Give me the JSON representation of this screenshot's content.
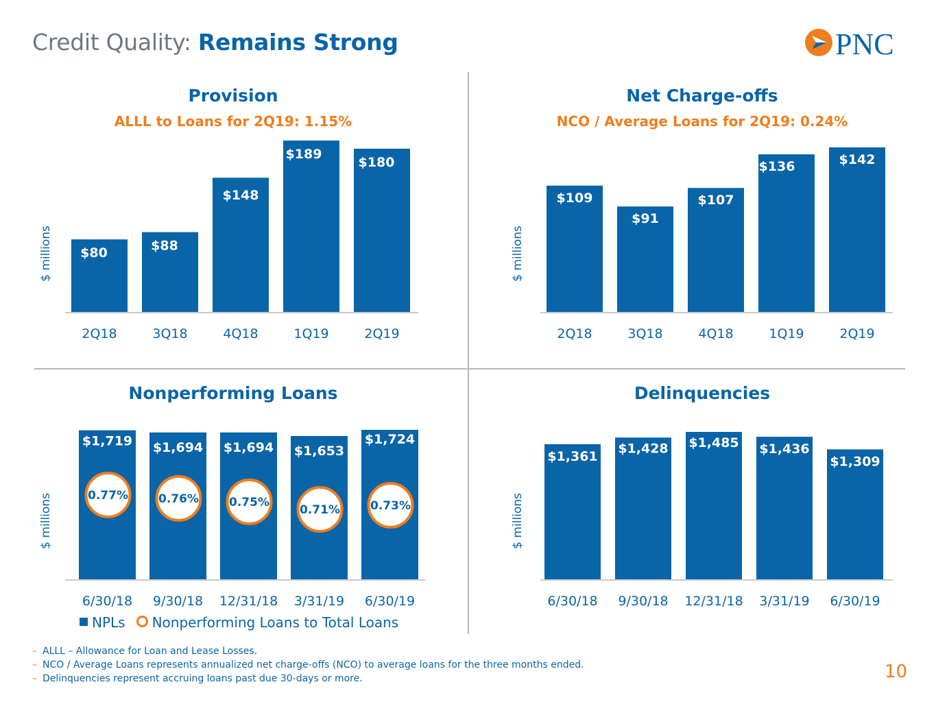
{
  "header": {
    "title_prefix": "Credit Quality:",
    "title_emphasis": "Remains Strong",
    "logo_text": "PNC"
  },
  "colors": {
    "bar": "#0a64a8",
    "accent": "#f07d1e",
    "divider": "#b4b8bc"
  },
  "icons": {
    "logo": "pnc-logo-icon"
  },
  "chart_data": [
    {
      "type": "bar",
      "title": "Provision",
      "subtitle": "ALLL to Loans for 2Q19: 1.15%",
      "ylabel": "$ millions",
      "categories": [
        "2Q18",
        "3Q18",
        "4Q18",
        "1Q19",
        "2Q19"
      ],
      "values": [
        80,
        88,
        148,
        189,
        180
      ],
      "labels": [
        "$80",
        "$88",
        "$148",
        "$189",
        "$180"
      ],
      "ylim": [
        0,
        200
      ]
    },
    {
      "type": "bar",
      "title": "Net Charge-offs",
      "subtitle": "NCO / Average Loans for 2Q19: 0.24%",
      "ylabel": "$ millions",
      "categories": [
        "2Q18",
        "3Q18",
        "4Q18",
        "1Q19",
        "2Q19"
      ],
      "values": [
        109,
        91,
        107,
        136,
        142
      ],
      "labels": [
        "$109",
        "$91",
        "$107",
        "$136",
        "$142"
      ],
      "ylim": [
        0,
        150
      ]
    },
    {
      "type": "bar",
      "title": "Nonperforming Loans",
      "subtitle": "",
      "ylabel": "$ millions",
      "categories": [
        "6/30/18",
        "9/30/18",
        "12/31/18",
        "3/31/19",
        "6/30/19"
      ],
      "values": [
        1719,
        1694,
        1694,
        1653,
        1724
      ],
      "labels": [
        "$1,719",
        "$1,694",
        "$1,694",
        "$1,653",
        "$1,724"
      ],
      "ylim": [
        0,
        1800
      ],
      "series": [
        {
          "name": "NPLs",
          "values": [
            1719,
            1694,
            1694,
            1653,
            1724
          ]
        },
        {
          "name": "Nonperforming Loans to Total Loans",
          "values": [
            0.77,
            0.76,
            0.75,
            0.71,
            0.73
          ],
          "labels": [
            "0.77%",
            "0.76%",
            "0.75%",
            "0.71%",
            "0.73%"
          ]
        }
      ],
      "legend": [
        "NPLs",
        "Nonperforming Loans to Total Loans"
      ]
    },
    {
      "type": "bar",
      "title": "Delinquencies",
      "subtitle": "",
      "ylabel": "$ millions",
      "categories": [
        "6/30/18",
        "9/30/18",
        "12/31/18",
        "3/31/19",
        "6/30/19"
      ],
      "values": [
        1361,
        1428,
        1485,
        1436,
        1309
      ],
      "labels": [
        "$1,361",
        "$1,428",
        "$1,485",
        "$1,436",
        "$1,309"
      ],
      "ylim": [
        0,
        1550
      ]
    }
  ],
  "footnotes": [
    "ALLL – Allowance for Loan and Lease Losses.",
    "NCO / Average Loans represents annualized net charge-offs (NCO) to average loans for the three months ended.",
    "Delinquencies represent accruing loans past due 30-days or more."
  ],
  "footnote_dash": "–",
  "page_number": "10"
}
